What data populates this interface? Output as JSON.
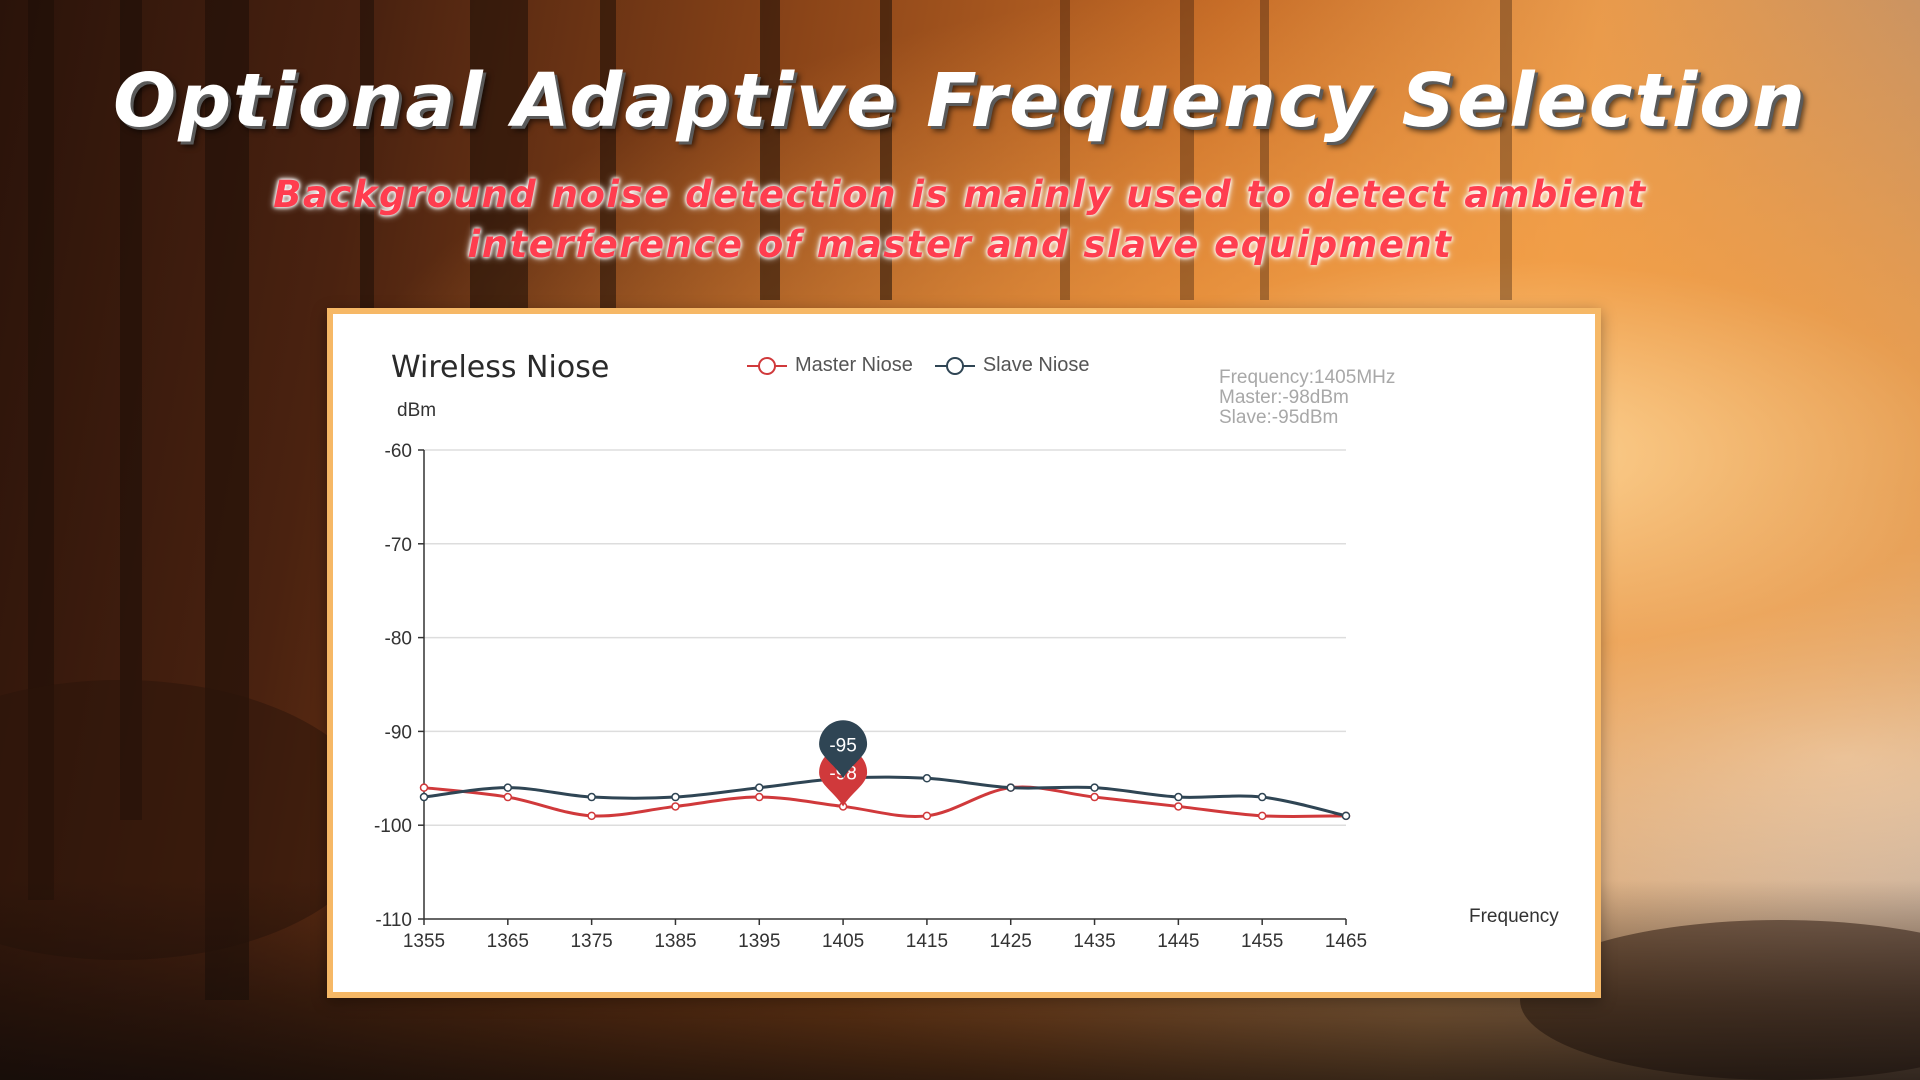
{
  "page": {
    "title": "Optional Adaptive Frequency Selection",
    "subtitle_line1": "Background noise detection is mainly used to detect ambient",
    "subtitle_line2": "interference of master and slave equipment"
  },
  "tooltip": {
    "frequency": "Frequency:1405MHz",
    "master": "Master:-98dBm",
    "slave": "Slave:-95dBm"
  },
  "colors": {
    "master": "#d0393b",
    "slave": "#2f4554",
    "grid": "#dddddd",
    "axis": "#333333",
    "panel_border": "#f6b866"
  },
  "chart_data": {
    "type": "line",
    "title": "Wireless Niose",
    "xlabel": "Frequency",
    "ylabel": "dBm",
    "x": [
      1355,
      1365,
      1375,
      1385,
      1395,
      1405,
      1415,
      1425,
      1435,
      1445,
      1455,
      1465
    ],
    "xlim": [
      1355,
      1465
    ],
    "ylim": [
      -110,
      -60
    ],
    "yticks": [
      -60,
      -70,
      -80,
      -90,
      -100,
      -110
    ],
    "grid": true,
    "legend": "top-center",
    "series": [
      {
        "name": "Master Niose",
        "values": [
          -96,
          -97,
          -99,
          -98,
          -97,
          -98,
          -99,
          -96,
          -97,
          -98,
          -99,
          -99
        ]
      },
      {
        "name": "Slave Niose",
        "values": [
          -97,
          -96,
          -97,
          -97,
          -96,
          -95,
          -95,
          -96,
          -96,
          -97,
          -97,
          -99
        ]
      }
    ],
    "markers": [
      {
        "series": "Slave Niose",
        "x": 1405,
        "label": "-95"
      },
      {
        "series": "Master Niose",
        "x": 1405,
        "label": "-98"
      }
    ]
  }
}
